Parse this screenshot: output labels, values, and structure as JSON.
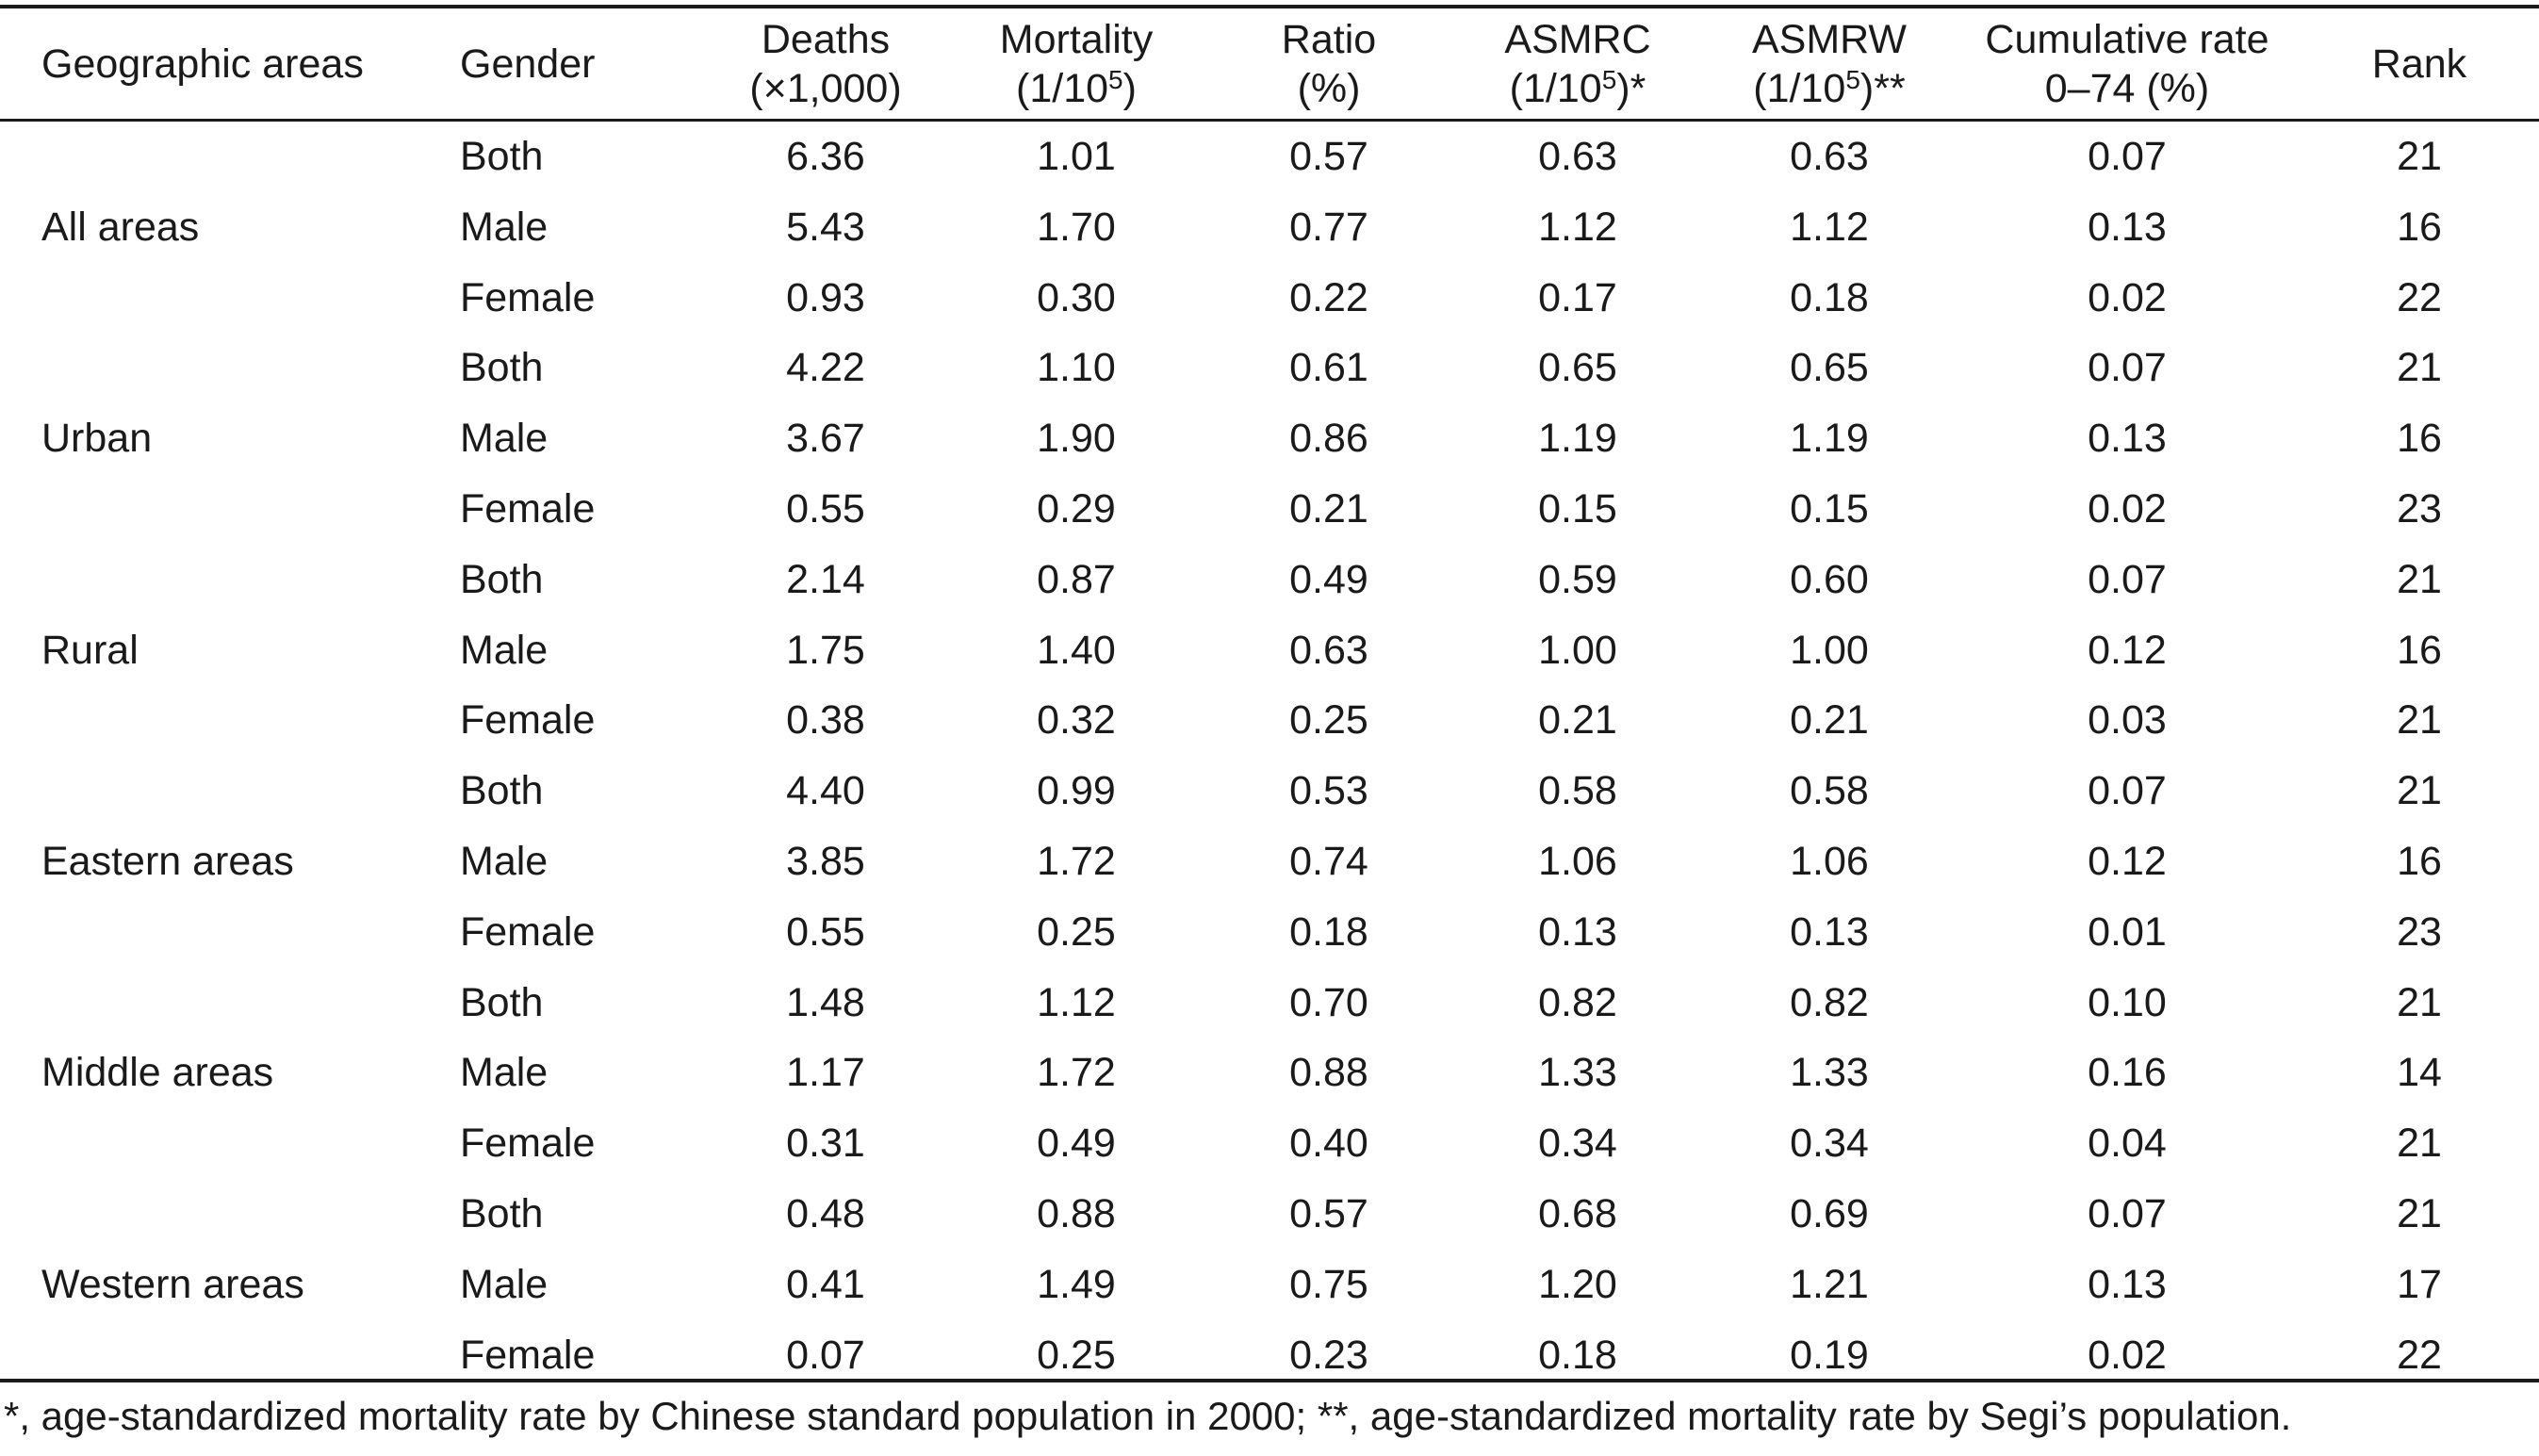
{
  "table": {
    "headers": {
      "geographic_areas": "Geographic areas",
      "gender": "Gender",
      "deaths": [
        "Deaths",
        "(×1,000)"
      ],
      "mortality": {
        "line1": "Mortality",
        "line2_pre": "(1/10",
        "line2_sup": "5",
        "line2_post": ")"
      },
      "ratio": [
        "Ratio",
        "(%)"
      ],
      "asmrc": {
        "line1": "ASMRC",
        "line2_pre": "(1/10",
        "line2_sup": "5",
        "line2_post": ")*"
      },
      "asmrw": {
        "line1": "ASMRW",
        "line2_pre": "(1/10",
        "line2_sup": "5",
        "line2_post": ")**"
      },
      "cumulative": [
        "Cumulative rate",
        "0–74 (%)"
      ],
      "rank": "Rank"
    },
    "groups": [
      {
        "area": "All areas",
        "rows": [
          {
            "gender": "Both",
            "deaths": "6.36",
            "mortality": "1.01",
            "ratio": "0.57",
            "asmrc": "0.63",
            "asmrw": "0.63",
            "cumulative": "0.07",
            "rank": "21"
          },
          {
            "gender": "Male",
            "deaths": "5.43",
            "mortality": "1.70",
            "ratio": "0.77",
            "asmrc": "1.12",
            "asmrw": "1.12",
            "cumulative": "0.13",
            "rank": "16"
          },
          {
            "gender": "Female",
            "deaths": "0.93",
            "mortality": "0.30",
            "ratio": "0.22",
            "asmrc": "0.17",
            "asmrw": "0.18",
            "cumulative": "0.02",
            "rank": "22"
          }
        ]
      },
      {
        "area": "Urban",
        "rows": [
          {
            "gender": "Both",
            "deaths": "4.22",
            "mortality": "1.10",
            "ratio": "0.61",
            "asmrc": "0.65",
            "asmrw": "0.65",
            "cumulative": "0.07",
            "rank": "21"
          },
          {
            "gender": "Male",
            "deaths": "3.67",
            "mortality": "1.90",
            "ratio": "0.86",
            "asmrc": "1.19",
            "asmrw": "1.19",
            "cumulative": "0.13",
            "rank": "16"
          },
          {
            "gender": "Female",
            "deaths": "0.55",
            "mortality": "0.29",
            "ratio": "0.21",
            "asmrc": "0.15",
            "asmrw": "0.15",
            "cumulative": "0.02",
            "rank": "23"
          }
        ]
      },
      {
        "area": "Rural",
        "rows": [
          {
            "gender": "Both",
            "deaths": "2.14",
            "mortality": "0.87",
            "ratio": "0.49",
            "asmrc": "0.59",
            "asmrw": "0.60",
            "cumulative": "0.07",
            "rank": "21"
          },
          {
            "gender": "Male",
            "deaths": "1.75",
            "mortality": "1.40",
            "ratio": "0.63",
            "asmrc": "1.00",
            "asmrw": "1.00",
            "cumulative": "0.12",
            "rank": "16"
          },
          {
            "gender": "Female",
            "deaths": "0.38",
            "mortality": "0.32",
            "ratio": "0.25",
            "asmrc": "0.21",
            "asmrw": "0.21",
            "cumulative": "0.03",
            "rank": "21"
          }
        ]
      },
      {
        "area": "Eastern areas",
        "rows": [
          {
            "gender": "Both",
            "deaths": "4.40",
            "mortality": "0.99",
            "ratio": "0.53",
            "asmrc": "0.58",
            "asmrw": "0.58",
            "cumulative": "0.07",
            "rank": "21"
          },
          {
            "gender": "Male",
            "deaths": "3.85",
            "mortality": "1.72",
            "ratio": "0.74",
            "asmrc": "1.06",
            "asmrw": "1.06",
            "cumulative": "0.12",
            "rank": "16"
          },
          {
            "gender": "Female",
            "deaths": "0.55",
            "mortality": "0.25",
            "ratio": "0.18",
            "asmrc": "0.13",
            "asmrw": "0.13",
            "cumulative": "0.01",
            "rank": "23"
          }
        ]
      },
      {
        "area": "Middle areas",
        "rows": [
          {
            "gender": "Both",
            "deaths": "1.48",
            "mortality": "1.12",
            "ratio": "0.70",
            "asmrc": "0.82",
            "asmrw": "0.82",
            "cumulative": "0.10",
            "rank": "21"
          },
          {
            "gender": "Male",
            "deaths": "1.17",
            "mortality": "1.72",
            "ratio": "0.88",
            "asmrc": "1.33",
            "asmrw": "1.33",
            "cumulative": "0.16",
            "rank": "14"
          },
          {
            "gender": "Female",
            "deaths": "0.31",
            "mortality": "0.49",
            "ratio": "0.40",
            "asmrc": "0.34",
            "asmrw": "0.34",
            "cumulative": "0.04",
            "rank": "21"
          }
        ]
      },
      {
        "area": "Western areas",
        "rows": [
          {
            "gender": "Both",
            "deaths": "0.48",
            "mortality": "0.88",
            "ratio": "0.57",
            "asmrc": "0.68",
            "asmrw": "0.69",
            "cumulative": "0.07",
            "rank": "21"
          },
          {
            "gender": "Male",
            "deaths": "0.41",
            "mortality": "1.49",
            "ratio": "0.75",
            "asmrc": "1.20",
            "asmrw": "1.21",
            "cumulative": "0.13",
            "rank": "17"
          },
          {
            "gender": "Female",
            "deaths": "0.07",
            "mortality": "0.25",
            "ratio": "0.23",
            "asmrc": "0.18",
            "asmrw": "0.19",
            "cumulative": "0.02",
            "rank": "22"
          }
        ]
      }
    ]
  },
  "footnote": "*, age-standardized mortality rate by Chinese standard population in 2000; **, age-standardized mortality rate by Segi’s population."
}
